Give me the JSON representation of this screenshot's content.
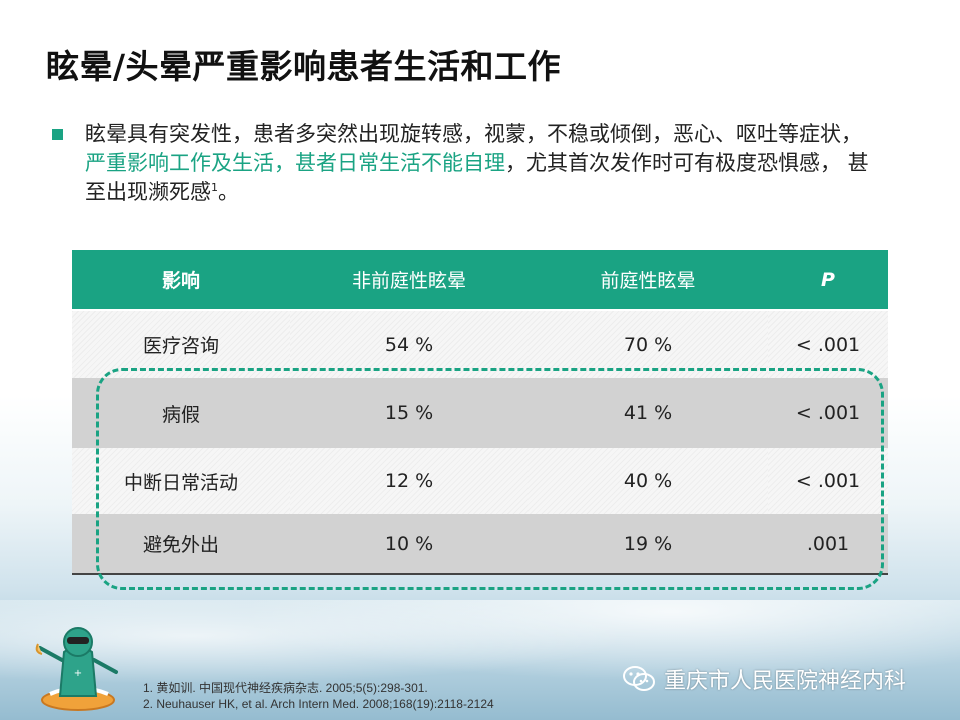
{
  "title": "眩晕/头晕严重影响患者生活和工作",
  "bullet": {
    "text_before": "眩晕具有突发性，患者多突然出现旋转感，视蒙，不稳或倾倒，恶心、呕吐等症状，",
    "highlight": "严重影响工作及生活，甚者日常生活不能自理",
    "text_after": "，尤其首次发作时可有极度恐惧感， 甚至出现濒死感",
    "superscript": "1",
    "end": "。"
  },
  "table": {
    "headers": [
      "影响",
      "非前庭性眩晕",
      "前庭性眩晕",
      "P"
    ],
    "rows": [
      [
        "医疗咨询",
        "54 %",
        "70 %",
        "< .001"
      ],
      [
        "病假",
        "15 %",
        "41 %",
        "< .001"
      ],
      [
        "中断日常活动",
        "12 %",
        "40 %",
        "< .001"
      ],
      [
        "避免外出",
        "10 %",
        "19 %",
        ".001"
      ]
    ]
  },
  "references": [
    "1. 黄如训. 中国现代神经疾病杂志. 2005;5(5):298-301.",
    "2. Neuhauser HK, et al. Arch Intern Med. 2008;168(19):2118-2124"
  ],
  "watermark": "重庆市人民医院神经内科",
  "colors": {
    "accent": "#1aa383",
    "header_bg": "#1aa383",
    "row_dark": "#d2d2d2",
    "row_light": "#f6f6f6"
  }
}
